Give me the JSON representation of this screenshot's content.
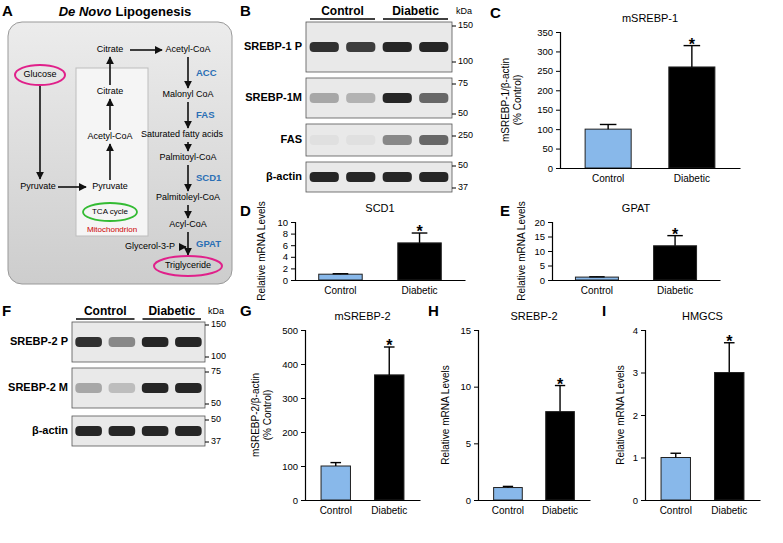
{
  "chart_data": [
    {
      "type": "bar",
      "panel": "C",
      "title": "mSREBP-1",
      "y_label": [
        "mSREBP-1/β-actin",
        "(% Control)"
      ],
      "categories": [
        "Control",
        "Diabetic"
      ],
      "values": [
        100,
        260
      ],
      "errors": [
        12,
        55
      ],
      "colors": [
        "#88b8ea",
        "#000000"
      ],
      "ylim": [
        0,
        350
      ],
      "yticks": [
        0,
        50,
        100,
        150,
        200,
        250,
        300,
        350
      ],
      "annotations": [
        {
          "text": "*",
          "category": "Diabetic"
        }
      ]
    },
    {
      "type": "bar",
      "panel": "D",
      "title": "SCD1",
      "y_label": [
        "Relative mRNA Levels"
      ],
      "categories": [
        "Control",
        "Diabetic"
      ],
      "values": [
        1,
        6.4
      ],
      "errors": [
        0.08,
        1.7
      ],
      "colors": [
        "#88b8ea",
        "#000000"
      ],
      "ylim": [
        0,
        10
      ],
      "yticks": [
        0,
        2,
        4,
        6,
        8,
        10
      ],
      "annotations": [
        {
          "text": "*",
          "category": "Diabetic"
        }
      ]
    },
    {
      "type": "bar",
      "panel": "E",
      "title": "GPAT",
      "y_label": [
        "Relative mRNA Levels"
      ],
      "categories": [
        "Control",
        "Diabetic"
      ],
      "values": [
        1,
        11.8
      ],
      "errors": [
        0.1,
        3.5
      ],
      "colors": [
        "#88b8ea",
        "#000000"
      ],
      "ylim": [
        0,
        20
      ],
      "yticks": [
        0,
        5,
        10,
        15,
        20
      ],
      "annotations": [
        {
          "text": "*",
          "category": "Diabetic"
        }
      ]
    },
    {
      "type": "bar",
      "panel": "G",
      "title": "mSREBP-2",
      "y_label": [
        "mSREBP-2/β-actin",
        "(% Control)"
      ],
      "categories": [
        "Control",
        "Diabetic"
      ],
      "values": [
        100,
        368
      ],
      "errors": [
        10,
        82
      ],
      "colors": [
        "#88b8ea",
        "#000000"
      ],
      "ylim": [
        0,
        500
      ],
      "yticks": [
        0,
        100,
        200,
        300,
        400,
        500
      ],
      "annotations": [
        {
          "text": "*",
          "category": "Diabetic"
        }
      ]
    },
    {
      "type": "bar",
      "panel": "H",
      "title": "SREBP-2",
      "y_label": [
        "Relative mRNA Levels"
      ],
      "categories": [
        "Control",
        "Diabetic"
      ],
      "values": [
        1.1,
        7.8
      ],
      "errors": [
        0.1,
        2.3
      ],
      "colors": [
        "#88b8ea",
        "#000000"
      ],
      "ylim": [
        0,
        15
      ],
      "yticks": [
        0,
        5,
        10,
        15
      ],
      "annotations": [
        {
          "text": "*",
          "category": "Diabetic"
        }
      ]
    },
    {
      "type": "bar",
      "panel": "I",
      "title": "HMGCS",
      "y_label": [
        "Relative mRNA Levels"
      ],
      "categories": [
        "Control",
        "Diabetic"
      ],
      "values": [
        1,
        3.0
      ],
      "errors": [
        0.1,
        0.7
      ],
      "colors": [
        "#88b8ea",
        "#000000"
      ],
      "ylim": [
        0,
        4
      ],
      "yticks": [
        0,
        1,
        2,
        3,
        4
      ],
      "annotations": [
        {
          "text": "*",
          "category": "Diabetic"
        }
      ]
    }
  ],
  "diagram": {
    "panel": "A",
    "title_italic": "De Novo",
    "title": "Lipogenesis",
    "nodes": [
      "Glucose",
      "Pyruvate",
      "Pyruvate",
      "Acetyl-CoA",
      "Citrate",
      "Citrate",
      "Acetyl-CoA",
      "Malonyl CoA",
      "Saturated fatty acids",
      "Palmitoyl-CoA",
      "Palmitoleyl-CoA",
      "Acyl-CoA",
      "Glycerol-3-P",
      "Triglyceride"
    ],
    "enzymes": [
      "ACC",
      "FAS",
      "SCD1",
      "GPAT"
    ],
    "cycle": "TCA cycle",
    "organelle": "Mitochondrion"
  },
  "blots": [
    {
      "panel": "B",
      "groups": [
        "Control",
        "Diabetic"
      ],
      "unit": "kDa",
      "rows": [
        {
          "label": "SREBP-1 P",
          "markers": [
            150,
            100
          ]
        },
        {
          "label": "SREBP-1M",
          "markers": [
            75,
            50
          ]
        },
        {
          "label": "FAS",
          "markers": [
            250
          ]
        },
        {
          "label": "β-actin",
          "markers": [
            50,
            37
          ]
        }
      ]
    },
    {
      "panel": "F",
      "groups": [
        "Control",
        "Diabetic"
      ],
      "unit": "kDa",
      "rows": [
        {
          "label": "SREBP-2 P",
          "markers": [
            150,
            100
          ]
        },
        {
          "label": "SREBP-2 M",
          "markers": [
            75,
            50
          ]
        },
        {
          "label": "β-actin",
          "markers": [
            50,
            37
          ]
        }
      ]
    }
  ]
}
